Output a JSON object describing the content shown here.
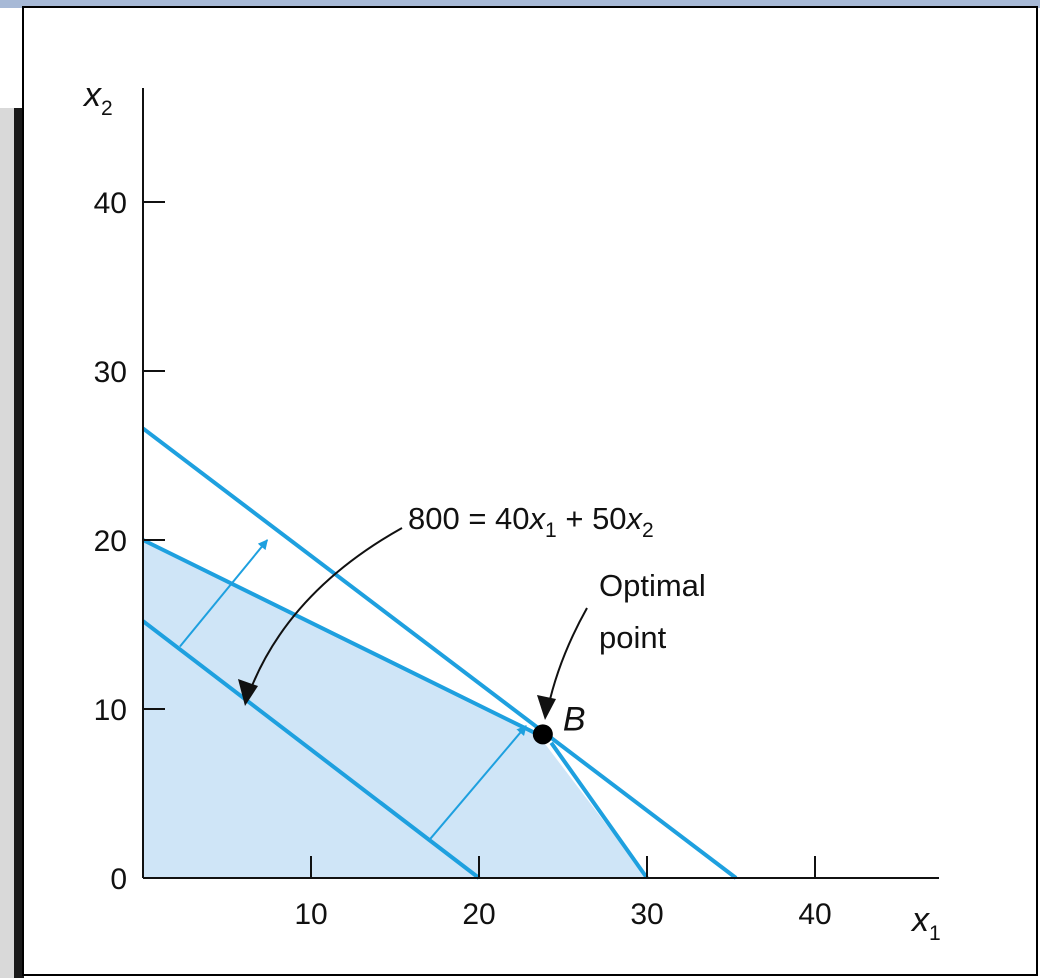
{
  "chart_data": {
    "type": "line",
    "title": "",
    "x_axis": {
      "var": "x",
      "sub": "1",
      "ticks": [
        10,
        20,
        30,
        40
      ],
      "range": [
        0,
        48
      ]
    },
    "y_axis": {
      "var": "x",
      "sub": "2",
      "ticks": [
        0,
        10,
        20,
        30,
        40
      ],
      "range": [
        0,
        47
      ]
    },
    "feasible_region": {
      "vertices": [
        [
          0,
          0
        ],
        [
          0,
          20
        ],
        [
          23.5,
          8.5
        ],
        [
          30,
          0
        ]
      ],
      "color": "#cfe5f7"
    },
    "constraint_lines": [
      {
        "points": [
          [
            0,
            26.6
          ],
          [
            35.3,
            0
          ]
        ]
      },
      {
        "points": [
          [
            0,
            20
          ],
          [
            23.5,
            8.5
          ]
        ]
      },
      {
        "points": [
          [
            24.3,
            8
          ],
          [
            30,
            0
          ]
        ]
      }
    ],
    "objective_line": {
      "points": [
        [
          0,
          15.2
        ],
        [
          20,
          0
        ]
      ]
    },
    "shift_arrows": [
      {
        "from": [
          2.2,
          13.7
        ],
        "to": [
          7.4,
          20.0
        ]
      },
      {
        "from": [
          17.0,
          2.2
        ],
        "to": [
          22.8,
          9.0
        ]
      }
    ],
    "optimal_point": {
      "x": 23.8,
      "y": 8.5,
      "label": "B"
    },
    "annotations": {
      "equation": {
        "lhs": "800 = 40",
        "v1": "x",
        "s1": "1",
        "mid": " + 50",
        "v2": "x",
        "s2": "2"
      },
      "optimal": {
        "line1": "Optimal",
        "line2": "point"
      }
    },
    "colors": {
      "line": "#1ea0df",
      "fill": "#cfe5f7",
      "axis": "#111111",
      "point": "#000000"
    }
  }
}
